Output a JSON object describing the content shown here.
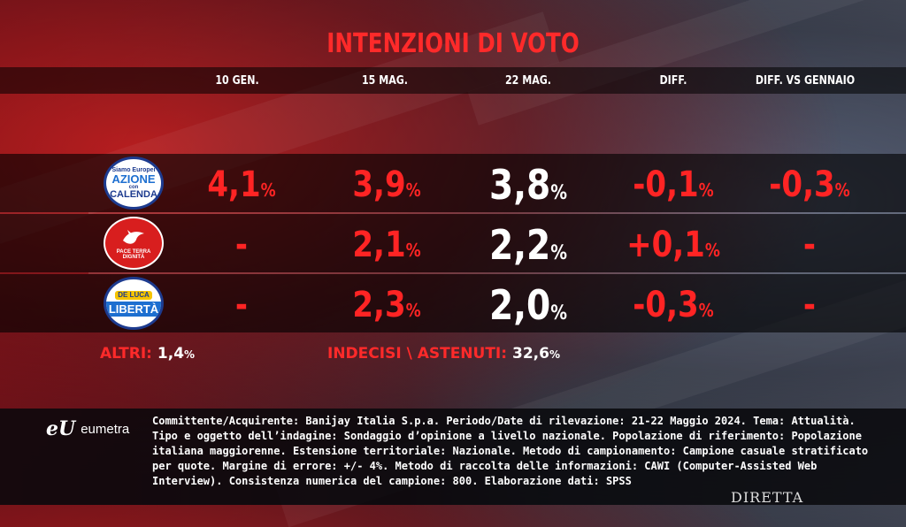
{
  "title": "INTENZIONI DI VOTO",
  "columns": [
    "10 GEN.",
    "15 MAG.",
    "22 MAG.",
    "DIFF.",
    "DIFF. VS GENNAIO"
  ],
  "rows": [
    {
      "logo_text": [
        "Siamo Europei",
        "AZIONE",
        "con",
        "CALENDA"
      ],
      "values": [
        "4,1",
        "3,9",
        "3,8",
        "-0,1",
        "-0,3"
      ]
    },
    {
      "logo_text": [
        "PACE TERRA DIGNITÀ"
      ],
      "values": [
        "-",
        "2,1",
        "2,2",
        "+0,1",
        "-"
      ]
    },
    {
      "logo_text": [
        "DE LUCA",
        "LIBERTÀ"
      ],
      "values": [
        "-",
        "2,3",
        "2,0",
        "-0,3",
        "-"
      ]
    }
  ],
  "altri": {
    "label": "ALTRI:",
    "value": "1,4",
    "unit": "%"
  },
  "indecisi": {
    "label": "INDECISI \\ ASTENUTI:",
    "value": "32,6",
    "unit": "%"
  },
  "percent_symbol": "%",
  "brand": {
    "mark": "eU",
    "name": "eumetra"
  },
  "methodology": "Committente/Acquirente: Banijay Italia S.p.a. Periodo/Date di rilevazione: 21-22 Maggio 2024. Tema: Attualità. Tipo e oggetto dell’indagine: Sondaggio d’opinione a livello nazionale. Popolazione di riferimento: Popolazione italiana maggiorenne. Estensione territoriale: Nazionale. Metodo di campionamento: Campione casuale stratificato per quote. Margine di errore: +/- 4%. Metodo di raccolta delle informazioni: CAWI (Computer-Assisted Web Interview). Consistenza numerica del campione: 800. Elaborazione dati: SPSS",
  "watermark": "DIRETTA",
  "colors": {
    "accent": "#ff2a2a",
    "current": "#ffffff",
    "bar": "#000000"
  },
  "chart_data": {
    "type": "table",
    "title": "INTENZIONI DI VOTO",
    "columns": [
      "10 GEN.",
      "15 MAG.",
      "22 MAG.",
      "DIFF.",
      "DIFF. VS GENNAIO"
    ],
    "rows": [
      {
        "party": "Siamo Europei Azione con Calenda",
        "values": [
          4.1,
          3.9,
          3.8,
          -0.1,
          -0.3
        ]
      },
      {
        "party": "Pace Terra Dignità",
        "values": [
          null,
          2.1,
          2.2,
          0.1,
          null
        ]
      },
      {
        "party": "De Luca Libertà",
        "values": [
          null,
          2.3,
          2.0,
          -0.3,
          null
        ]
      }
    ],
    "altri": 1.4,
    "indecisi_astenuti": 32.6,
    "unit": "%"
  }
}
